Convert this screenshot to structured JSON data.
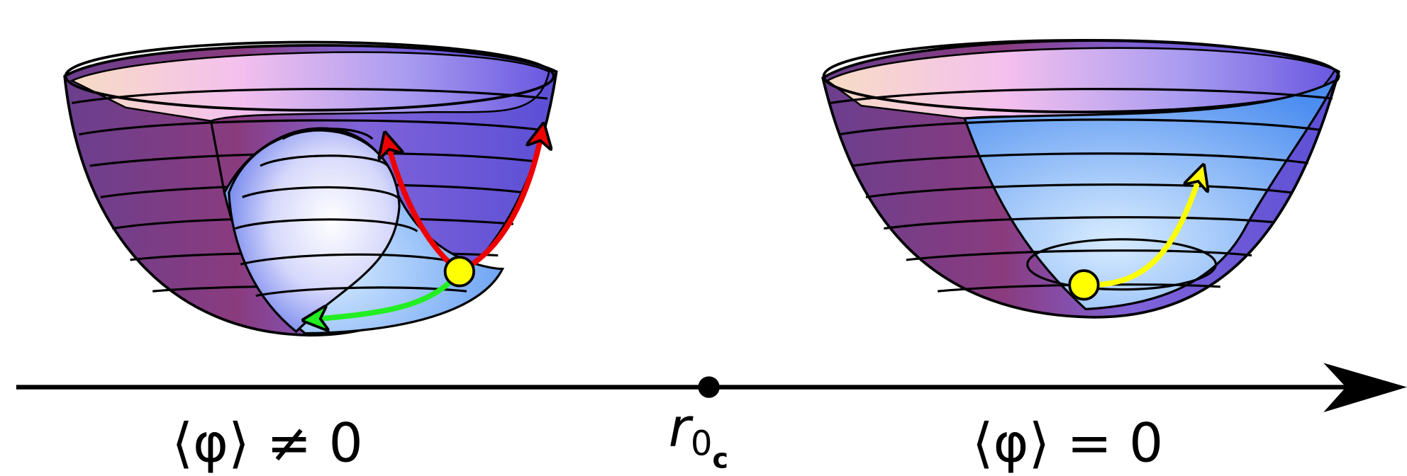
{
  "labels": {
    "left": "⟨φ⟩ ≠ 0",
    "center": {
      "base": "r",
      "sub": "0",
      "subsub": "c"
    },
    "right": "⟨φ⟩ = 0"
  }
}
